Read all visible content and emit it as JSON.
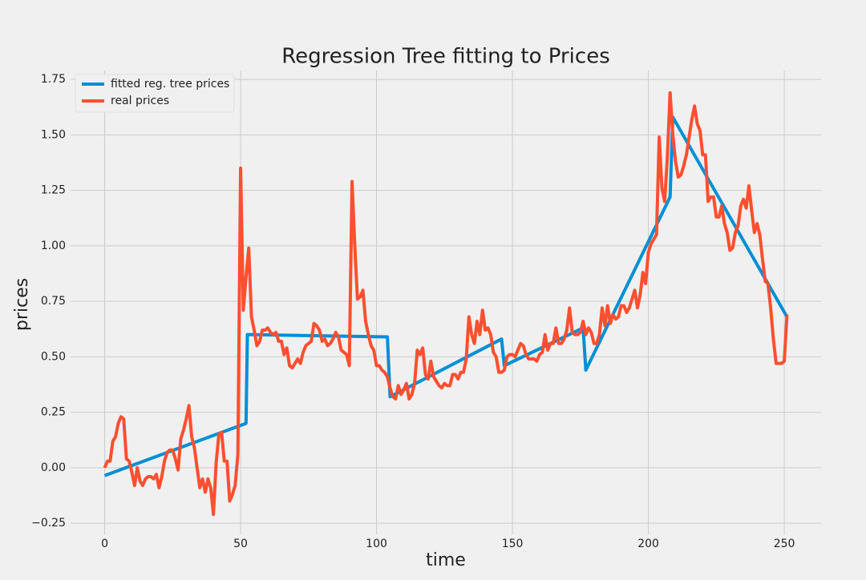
{
  "chart_data": {
    "type": "line",
    "title": "Regression Tree fitting to Prices",
    "x_label": "time",
    "y_label": "prices",
    "xlim": [
      -12.55,
      263.55
    ],
    "ylim": [
      -0.3,
      1.79
    ],
    "xticks": [
      0,
      50,
      100,
      150,
      200,
      250
    ],
    "yticks": [
      {
        "value": -0.25,
        "label": "−0.25"
      },
      {
        "value": 0,
        "label": "0.00"
      },
      0.25,
      {
        "value": 0.5,
        "label": "0.50"
      },
      0.75,
      {
        "value": 1,
        "label": "1.00"
      },
      1.25,
      {
        "value": 1.5,
        "label": "1.50"
      },
      1.75
    ],
    "grid": true,
    "legend": "upper left",
    "series": [
      {
        "name": "fitted reg. tree prices",
        "color": "#008fd5",
        "x": [
          0,
          52,
          52.5,
          104,
          105,
          146,
          147,
          176,
          177,
          208,
          209,
          251
        ],
        "values": [
          -0.035,
          0.2,
          0.6,
          0.59,
          0.32,
          0.58,
          0.46,
          0.63,
          0.44,
          1.22,
          1.58,
          0.68
        ]
      },
      {
        "name": "real prices",
        "color": "#fc4f30",
        "x": [
          0,
          1,
          2,
          3,
          4,
          5,
          6,
          7,
          8,
          9,
          10,
          11,
          12,
          13,
          14,
          15,
          16,
          17,
          18,
          19,
          20,
          21,
          22,
          23,
          24,
          25,
          26,
          27,
          28,
          29,
          30,
          31,
          32,
          33,
          34,
          35,
          36,
          37,
          38,
          39,
          40,
          41,
          42,
          43,
          44,
          45,
          46,
          47,
          48,
          49,
          50,
          51,
          52,
          53,
          54,
          55,
          56,
          57,
          58,
          59,
          60,
          61,
          62,
          63,
          64,
          65,
          66,
          67,
          68,
          69,
          70,
          71,
          72,
          73,
          74,
          75,
          76,
          77,
          78,
          79,
          80,
          81,
          82,
          83,
          84,
          85,
          86,
          87,
          88,
          89,
          90,
          91,
          92,
          93,
          94,
          95,
          96,
          97,
          98,
          99,
          100,
          101,
          102,
          103,
          104,
          105,
          106,
          107,
          108,
          109,
          110,
          111,
          112,
          113,
          114,
          115,
          116,
          117,
          118,
          119,
          120,
          121,
          122,
          123,
          124,
          125,
          126,
          127,
          128,
          129,
          130,
          131,
          132,
          133,
          134,
          135,
          136,
          137,
          138,
          139,
          140,
          141,
          142,
          143,
          144,
          145,
          146,
          147,
          148,
          149,
          150,
          151,
          152,
          153,
          154,
          155,
          156,
          157,
          158,
          159,
          160,
          161,
          162,
          163,
          164,
          165,
          166,
          167,
          168,
          169,
          170,
          171,
          172,
          173,
          174,
          175,
          176,
          177,
          178,
          179,
          180,
          181,
          182,
          183,
          184,
          185,
          186,
          187,
          188,
          189,
          190,
          191,
          192,
          193,
          194,
          195,
          196,
          197,
          198,
          199,
          200,
          201,
          202,
          203,
          204,
          205,
          206,
          207,
          208,
          209,
          210,
          211,
          212,
          213,
          214,
          215,
          216,
          217,
          218,
          219,
          220,
          221,
          222,
          223,
          224,
          225,
          226,
          227,
          228,
          229,
          230,
          231,
          232,
          233,
          234,
          235,
          236,
          237,
          238,
          239,
          240,
          241,
          242,
          243,
          244,
          245,
          246,
          247,
          248,
          249,
          250,
          251
        ],
        "values": [
          0.0,
          0.03,
          0.03,
          0.12,
          0.14,
          0.2,
          0.23,
          0.22,
          0.04,
          0.03,
          -0.02,
          -0.08,
          0.0,
          -0.06,
          -0.08,
          -0.05,
          -0.04,
          -0.04,
          -0.05,
          -0.03,
          -0.09,
          -0.04,
          0.03,
          0.07,
          0.08,
          0.08,
          0.04,
          -0.01,
          0.13,
          0.17,
          0.22,
          0.28,
          0.14,
          0.09,
          0.0,
          -0.09,
          -0.05,
          -0.11,
          -0.05,
          -0.09,
          -0.21,
          0.02,
          0.15,
          0.16,
          0.03,
          0.03,
          -0.15,
          -0.12,
          -0.08,
          0.06,
          1.35,
          0.71,
          0.86,
          0.99,
          0.68,
          0.62,
          0.55,
          0.57,
          0.62,
          0.62,
          0.63,
          0.61,
          0.6,
          0.61,
          0.57,
          0.57,
          0.51,
          0.54,
          0.46,
          0.45,
          0.47,
          0.49,
          0.47,
          0.52,
          0.55,
          0.56,
          0.57,
          0.65,
          0.64,
          0.62,
          0.57,
          0.58,
          0.55,
          0.56,
          0.58,
          0.61,
          0.59,
          0.53,
          0.52,
          0.51,
          0.46,
          1.29,
          1.0,
          0.76,
          0.77,
          0.8,
          0.66,
          0.6,
          0.55,
          0.53,
          0.46,
          0.46,
          0.44,
          0.43,
          0.41,
          0.36,
          0.32,
          0.31,
          0.37,
          0.33,
          0.35,
          0.38,
          0.31,
          0.33,
          0.38,
          0.53,
          0.51,
          0.54,
          0.42,
          0.4,
          0.48,
          0.41,
          0.39,
          0.37,
          0.36,
          0.38,
          0.37,
          0.37,
          0.42,
          0.42,
          0.4,
          0.43,
          0.43,
          0.49,
          0.68,
          0.6,
          0.56,
          0.66,
          0.6,
          0.71,
          0.62,
          0.63,
          0.6,
          0.52,
          0.5,
          0.43,
          0.43,
          0.44,
          0.5,
          0.51,
          0.51,
          0.5,
          0.53,
          0.56,
          0.55,
          0.51,
          0.49,
          0.49,
          0.49,
          0.48,
          0.51,
          0.52,
          0.6,
          0.53,
          0.56,
          0.56,
          0.63,
          0.56,
          0.56,
          0.58,
          0.62,
          0.72,
          0.61,
          0.6,
          0.6,
          0.61,
          0.66,
          0.6,
          0.63,
          0.61,
          0.56,
          0.56,
          0.6,
          0.72,
          0.64,
          0.73,
          0.65,
          0.69,
          0.67,
          0.68,
          0.73,
          0.73,
          0.7,
          0.72,
          0.76,
          0.8,
          0.72,
          0.78,
          0.88,
          0.83,
          0.97,
          1.01,
          1.03,
          1.05,
          1.49,
          1.26,
          1.2,
          1.4,
          1.69,
          1.5,
          1.38,
          1.31,
          1.32,
          1.36,
          1.41,
          1.49,
          1.57,
          1.63,
          1.55,
          1.52,
          1.41,
          1.41,
          1.2,
          1.22,
          1.22,
          1.13,
          1.13,
          1.18,
          1.1,
          1.06,
          0.98,
          0.99,
          1.06,
          1.09,
          1.18,
          1.21,
          1.17,
          1.27,
          1.16,
          1.06,
          1.1,
          1.05,
          0.94,
          0.84,
          0.83,
          0.72,
          0.58,
          0.47,
          0.47,
          0.47,
          0.48,
          0.69
        ]
      }
    ]
  }
}
